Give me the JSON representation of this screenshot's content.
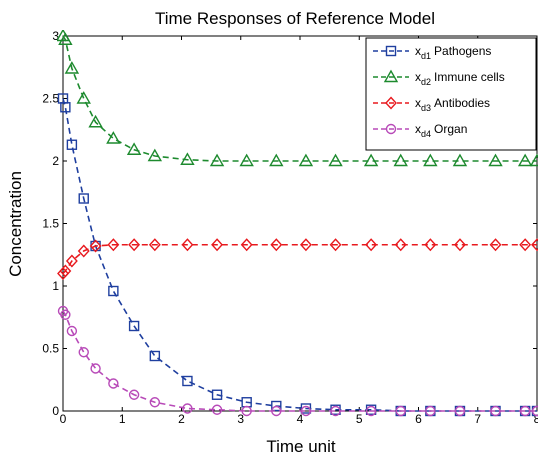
{
  "chart_data": {
    "type": "line",
    "title": "Time Responses of Reference  Model",
    "xlabel": "Time unit",
    "ylabel": "Concentration",
    "xlim": [
      0,
      8
    ],
    "ylim": [
      0,
      3
    ],
    "xticks": [
      "0",
      "1",
      "2",
      "3",
      "4",
      "5",
      "6",
      "7",
      "8"
    ],
    "yticks": [
      "0",
      "0.5",
      "1",
      "1.5",
      "2",
      "2.5",
      "3"
    ],
    "grid": false,
    "legend_position": "top-right",
    "series": [
      {
        "name": "x",
        "subscript": "d1",
        "label": "Pathogens",
        "color": "#1f3f9f",
        "marker": "square",
        "x": [
          0,
          0.04,
          0.15,
          0.35,
          0.55,
          0.85,
          1.2,
          1.55,
          2.1,
          2.6,
          3.1,
          3.6,
          4.1,
          4.6,
          5.2,
          5.7,
          6.2,
          6.7,
          7.3,
          7.8,
          8.0
        ],
        "y": [
          2.5,
          2.43,
          2.13,
          1.7,
          1.32,
          0.96,
          0.68,
          0.44,
          0.24,
          0.13,
          0.07,
          0.04,
          0.02,
          0.01,
          0.01,
          0.0,
          0.0,
          0.0,
          0.0,
          0.0,
          0.0
        ]
      },
      {
        "name": "x",
        "subscript": "d2",
        "label": "Immune cells",
        "color": "#1d8a2e",
        "marker": "triangle",
        "x": [
          0,
          0.04,
          0.15,
          0.35,
          0.55,
          0.85,
          1.2,
          1.55,
          2.1,
          2.6,
          3.1,
          3.6,
          4.1,
          4.6,
          5.2,
          5.7,
          6.2,
          6.7,
          7.3,
          7.8,
          8.0
        ],
        "y": [
          3.0,
          2.97,
          2.74,
          2.5,
          2.31,
          2.18,
          2.09,
          2.04,
          2.01,
          2.0,
          2.0,
          2.0,
          2.0,
          2.0,
          2.0,
          2.0,
          2.0,
          2.0,
          2.0,
          2.0,
          2.0
        ]
      },
      {
        "name": "x",
        "subscript": "d3",
        "label": "Antibodies",
        "color": "#e8191e",
        "marker": "diamond",
        "x": [
          0,
          0.04,
          0.15,
          0.35,
          0.55,
          0.85,
          1.2,
          1.55,
          2.1,
          2.6,
          3.1,
          3.6,
          4.1,
          4.6,
          5.2,
          5.7,
          6.2,
          6.7,
          7.3,
          7.8,
          8.0
        ],
        "y": [
          1.1,
          1.12,
          1.2,
          1.28,
          1.32,
          1.33,
          1.33,
          1.33,
          1.33,
          1.33,
          1.33,
          1.33,
          1.33,
          1.33,
          1.33,
          1.33,
          1.33,
          1.33,
          1.33,
          1.33,
          1.33
        ]
      },
      {
        "name": "x",
        "subscript": "d4",
        "label": "Organ",
        "color": "#b84ab8",
        "marker": "circle",
        "x": [
          0,
          0.04,
          0.15,
          0.35,
          0.55,
          0.85,
          1.2,
          1.55,
          2.1,
          2.6,
          3.1,
          3.6,
          4.1,
          4.6,
          5.2,
          5.7,
          6.2,
          6.7,
          7.3,
          7.8,
          8.0
        ],
        "y": [
          0.8,
          0.77,
          0.64,
          0.47,
          0.34,
          0.22,
          0.13,
          0.07,
          0.02,
          0.01,
          0.0,
          0.0,
          0.0,
          0.0,
          0.0,
          0.0,
          0.0,
          0.0,
          0.0,
          0.0,
          0.0
        ]
      }
    ]
  }
}
